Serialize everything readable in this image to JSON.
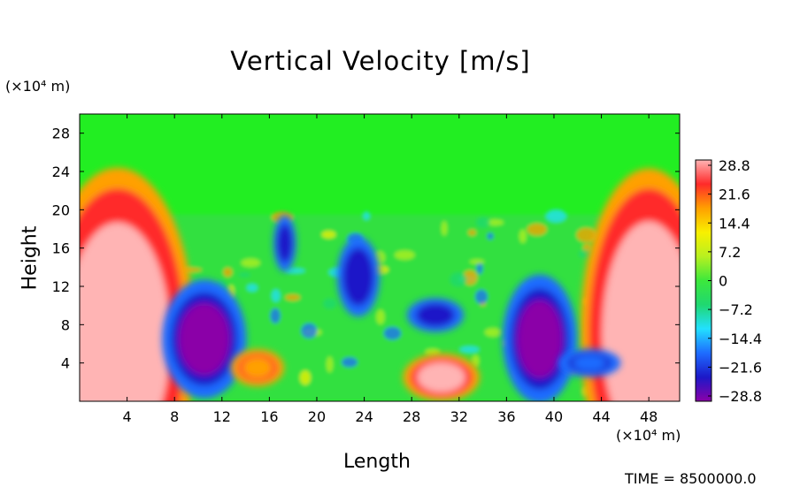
{
  "chart_data": {
    "type": "heatmap",
    "title": "Vertical Velocity [m/s]",
    "xlabel": "Length",
    "ylabel": "Height",
    "x_unit": "(×10⁴ m)",
    "y_unit": "(×10⁴ m)",
    "x_ticks": [
      "4",
      "8",
      "12",
      "16",
      "20",
      "24",
      "28",
      "32",
      "36",
      "40",
      "44",
      "48"
    ],
    "y_ticks": [
      "4",
      "8",
      "12",
      "16",
      "20",
      "24",
      "28"
    ],
    "xlim": [
      0,
      50.6
    ],
    "ylim": [
      0,
      30
    ],
    "colorbar_ticks": [
      "28.8",
      "21.6",
      "14.4",
      "7.2",
      "0",
      "−7.2",
      "−14.4",
      "−21.6",
      "−28.8"
    ],
    "colorbar_range": [
      -28.8,
      28.8
    ],
    "features": [
      {
        "x": 3.2,
        "y": 6.5,
        "value": 28.8
      },
      {
        "x": 48.0,
        "y": 7.0,
        "value": 28.8
      },
      {
        "x": 10.5,
        "y": 6.5,
        "value": -28.8
      },
      {
        "x": 38.8,
        "y": 6.5,
        "value": -28.8
      },
      {
        "x": 23.5,
        "y": 13.0,
        "value": -24.0
      },
      {
        "x": 17.3,
        "y": 16.5,
        "value": -22.0
      },
      {
        "x": 30.5,
        "y": 2.5,
        "value": 28.8
      },
      {
        "x": 15.0,
        "y": 3.5,
        "value": 16.0
      },
      {
        "x": 30.0,
        "y": 9.0,
        "value": -22.0
      },
      {
        "x": 43.0,
        "y": 4.0,
        "value": -20.0
      }
    ],
    "footer": "TIME = 8500000.0"
  },
  "colors": {
    "colormap": [
      "#8b00a8",
      "#1c18c8",
      "#1e6cff",
      "#22e0ff",
      "#20d870",
      "#3ce83c",
      "#b8f020",
      "#f8f000",
      "#ffa000",
      "#ff2a2a",
      "#ffb4b4"
    ],
    "background": "#ffffff",
    "axis": "#000000"
  }
}
